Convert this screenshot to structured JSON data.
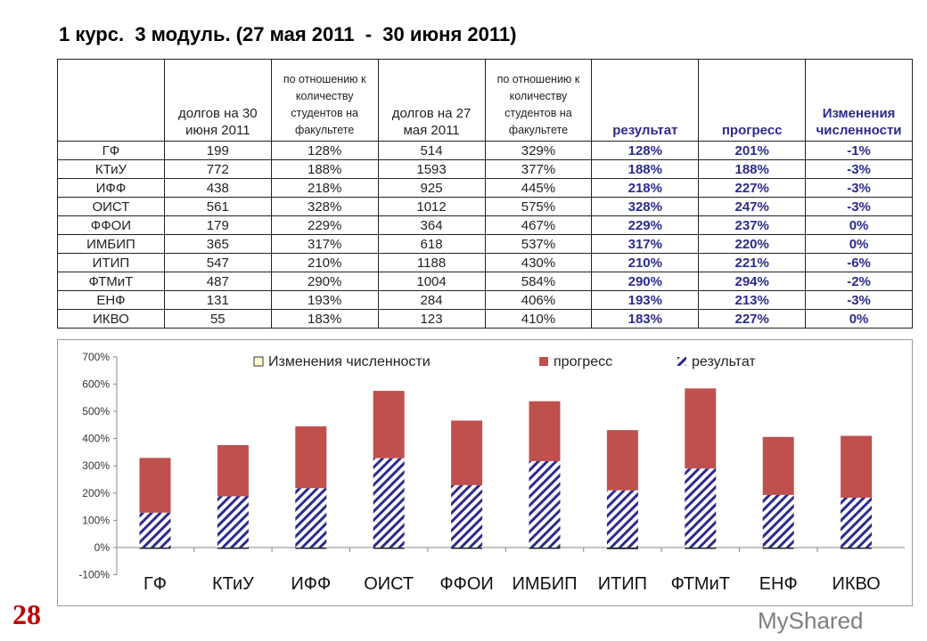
{
  "title": "1 курс.  3 модуль. (27 мая 2011  -  30 июня 2011)",
  "slide_number": "28",
  "watermark": "MyShared",
  "table": {
    "headers": [
      "",
      "долгов на 30 июня 2011",
      "по отношению к количеству студентов на факультете",
      "долгов на 27 мая 2011",
      "по отношению к количеству студентов на факультете",
      "результат",
      "прогресс",
      "Изменения численности"
    ],
    "rows": [
      [
        "ГФ",
        "199",
        "128%",
        "514",
        "329%",
        "128%",
        "201%",
        "-1%"
      ],
      [
        "КТиУ",
        "772",
        "188%",
        "1593",
        "377%",
        "188%",
        "188%",
        "-3%"
      ],
      [
        "ИФФ",
        "438",
        "218%",
        "925",
        "445%",
        "218%",
        "227%",
        "-3%"
      ],
      [
        "ОИСТ",
        "561",
        "328%",
        "1012",
        "575%",
        "328%",
        "247%",
        "-3%"
      ],
      [
        "ФФОИ",
        "179",
        "229%",
        "364",
        "467%",
        "229%",
        "237%",
        "0%"
      ],
      [
        "ИМБИП",
        "365",
        "317%",
        "618",
        "537%",
        "317%",
        "220%",
        "0%"
      ],
      [
        "ИТИП",
        "547",
        "210%",
        "1188",
        "430%",
        "210%",
        "221%",
        "-6%"
      ],
      [
        "ФТМиТ",
        "487",
        "290%",
        "1004",
        "584%",
        "290%",
        "294%",
        "-2%"
      ],
      [
        "ЕНФ",
        "131",
        "193%",
        "284",
        "406%",
        "193%",
        "213%",
        "-3%"
      ],
      [
        "ИКВО",
        "55",
        "183%",
        "123",
        "410%",
        "183%",
        "227%",
        "0%"
      ]
    ]
  },
  "chart_data": {
    "type": "bar",
    "stacked": true,
    "categories": [
      "ГФ",
      "КТиУ",
      "ИФФ",
      "ОИСТ",
      "ФФОИ",
      "ИМБИП",
      "ИТИП",
      "ФТМиТ",
      "ЕНФ",
      "ИКВО"
    ],
    "series": [
      {
        "name": "результат",
        "values": [
          128,
          188,
          218,
          328,
          229,
          317,
          210,
          290,
          193,
          183
        ],
        "color": "#2b2b8c",
        "pattern": "diagonal-hatch"
      },
      {
        "name": "прогресс",
        "values": [
          201,
          188,
          227,
          247,
          237,
          220,
          221,
          294,
          213,
          227
        ],
        "color": "#c0504d"
      },
      {
        "name": "Изменения численности",
        "values": [
          -1,
          -3,
          -3,
          -3,
          0,
          0,
          -6,
          -2,
          -3,
          0
        ],
        "color": "#ffffcc"
      }
    ],
    "yticks": [
      "700%",
      "600%",
      "500%",
      "400%",
      "300%",
      "200%",
      "100%",
      "0%",
      "-100%"
    ],
    "ylim": [
      -100,
      700
    ],
    "legend_position": "top",
    "grid": false
  }
}
